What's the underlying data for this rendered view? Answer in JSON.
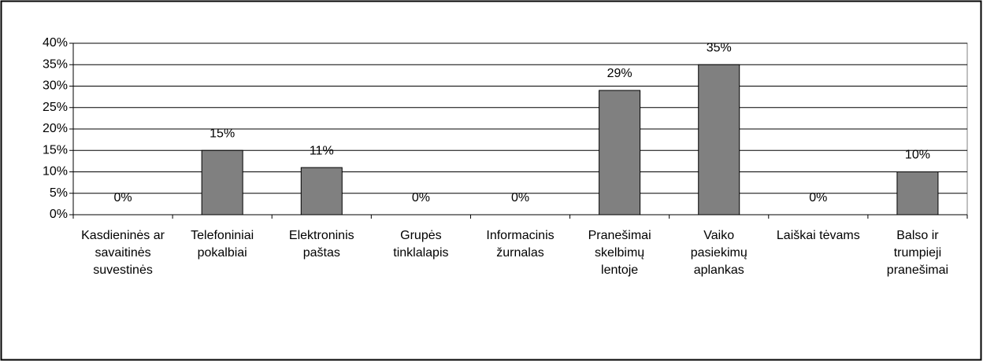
{
  "chart_data": {
    "type": "bar",
    "categories": [
      "Kasdieninės ar savaitinės suvestinės",
      "Telefoniniai pokalbiai",
      "Elektroninis paštas",
      "Grupės tinklalapis",
      "Informacinis žurnalas",
      "Pranešimai skelbimų lentoje",
      "Vaiko pasiekimų aplankas",
      "Laiškai tėvams",
      "Balso ir trumpieji pranešimai"
    ],
    "values": [
      0,
      15,
      11,
      0,
      0,
      29,
      35,
      0,
      10
    ],
    "value_labels": [
      "0%",
      "15%",
      "11%",
      "0%",
      "0%",
      "29%",
      "35%",
      "0%",
      "10%"
    ],
    "color": "#808080",
    "ylim": [
      0,
      40
    ],
    "yticks": [
      {
        "value": 0,
        "label": "0%"
      },
      {
        "value": 5,
        "label": "5%"
      },
      {
        "value": 10,
        "label": "10%"
      },
      {
        "value": 15,
        "label": "15%"
      },
      {
        "value": 20,
        "label": "20%"
      },
      {
        "value": 25,
        "label": "25%"
      },
      {
        "value": 30,
        "label": "30%"
      },
      {
        "value": 35,
        "label": "35%"
      },
      {
        "value": 40,
        "label": "40%"
      }
    ],
    "grid": true
  }
}
